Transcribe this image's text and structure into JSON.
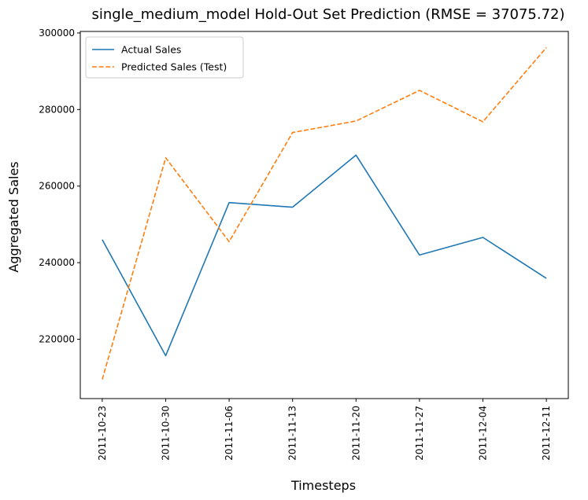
{
  "chart_data": {
    "type": "line",
    "title": "single_medium_model Hold-Out Set Prediction (RMSE = 37075.72)",
    "xlabel": "Timesteps",
    "ylabel": "Aggregated Sales",
    "x": [
      "2011-10-23",
      "2011-10-30",
      "2011-11-06",
      "2011-11-13",
      "2011-11-20",
      "2011-11-27",
      "2011-12-04",
      "2011-12-11"
    ],
    "ylim": [
      204500,
      300400
    ],
    "yticks": [
      220000,
      240000,
      260000,
      280000,
      300000
    ],
    "ytick_labels": [
      "220000",
      "240000",
      "260000",
      "280000",
      "300000"
    ],
    "grid": false,
    "legend_position": "upper-left",
    "series": [
      {
        "name": "Actual Sales",
        "color": "#1f77b4",
        "style": "solid",
        "values": [
          246000,
          215700,
          255700,
          254500,
          268100,
          242000,
          246600,
          235900
        ]
      },
      {
        "name": "Predicted Sales (Test)",
        "color": "#ff7f0e",
        "style": "dashed",
        "values": [
          209500,
          267400,
          245500,
          274000,
          277000,
          285000,
          276800,
          296200
        ]
      }
    ]
  }
}
